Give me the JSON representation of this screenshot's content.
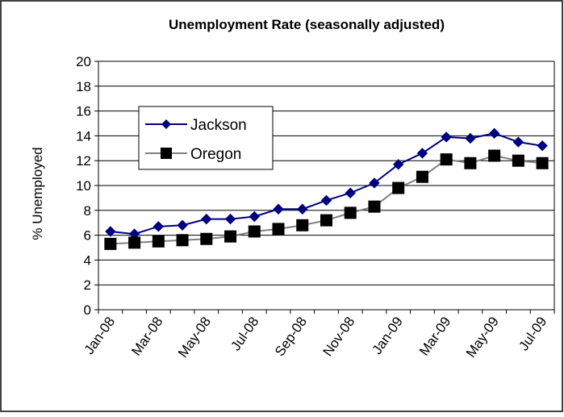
{
  "chart_data": {
    "type": "line",
    "title": "Unemployment Rate (seasonally adjusted)",
    "xlabel": "",
    "ylabel": "% Unemployed",
    "ylim": [
      0,
      20
    ],
    "ytick_step": 2,
    "yticks": [
      "0",
      "2",
      "4",
      "6",
      "8",
      "10",
      "12",
      "14",
      "16",
      "18",
      "20"
    ],
    "x": [
      "Jan-08",
      "Feb-08",
      "Mar-08",
      "Apr-08",
      "May-08",
      "Jun-08",
      "Jul-08",
      "Aug-08",
      "Sep-08",
      "Oct-08",
      "Nov-08",
      "Dec-08",
      "Jan-09",
      "Feb-09",
      "Mar-09",
      "Apr-09",
      "May-09",
      "Jun-09",
      "Jul-09"
    ],
    "xtick_labels": [
      "Jan-08",
      "Mar-08",
      "May-08",
      "Jul-08",
      "Sep-08",
      "Nov-08",
      "Jan-09",
      "Mar-09",
      "May-09",
      "Jul-09"
    ],
    "grid": true,
    "legend_position": "upper-left",
    "series": [
      {
        "name": "Jackson",
        "color": "#000080",
        "marker": "diamond",
        "values": [
          6.3,
          6.1,
          6.7,
          6.8,
          7.3,
          7.3,
          7.5,
          8.1,
          8.1,
          8.8,
          9.4,
          10.2,
          11.7,
          12.6,
          13.9,
          13.8,
          14.2,
          13.5,
          13.2
        ]
      },
      {
        "name": "Oregon",
        "color": "#000000",
        "line_color": "#808080",
        "marker": "square",
        "values": [
          5.3,
          5.4,
          5.5,
          5.6,
          5.7,
          5.9,
          6.3,
          6.5,
          6.8,
          7.2,
          7.8,
          8.3,
          9.8,
          10.7,
          12.1,
          11.8,
          12.4,
          12.0,
          11.8
        ]
      }
    ]
  }
}
